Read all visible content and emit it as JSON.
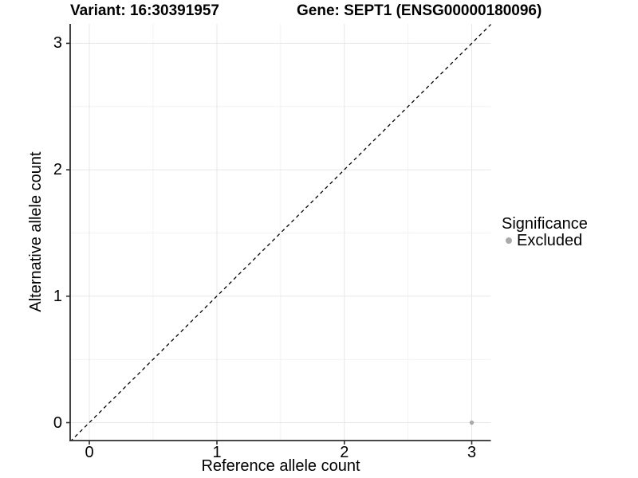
{
  "header": {
    "variant_title": "Variant: 16:30391957",
    "gene_title": "Gene: SEPT1 (ENSG00000180096)"
  },
  "axes": {
    "x": {
      "label": "Reference allele count",
      "tick_labels": [
        "0",
        "1",
        "2",
        "3"
      ]
    },
    "y": {
      "label": "Alternative allele count",
      "tick_labels": [
        "0",
        "1",
        "2",
        "3"
      ]
    }
  },
  "legend": {
    "title": "Significance",
    "items": [
      {
        "label": "Excluded",
        "color": "#aaaaaa",
        "marker": "circle-icon"
      }
    ]
  },
  "chart_data": {
    "type": "scatter",
    "title": "Variant: 16:30391957 | Gene: SEPT1 (ENSG00000180096)",
    "xlabel": "Reference allele count",
    "ylabel": "Alternative allele count",
    "xlim": [
      -0.15,
      3.15
    ],
    "ylim": [
      -0.15,
      3.15
    ],
    "x_ticks": [
      0,
      1,
      2,
      3
    ],
    "y_ticks": [
      0,
      1,
      2,
      3
    ],
    "grid": "major and minor gridlines every 0.5 units, light gray, white background",
    "legend_position": "right",
    "series": [
      {
        "name": "Excluded",
        "color": "#aaaaaa",
        "points": [
          {
            "x": 3,
            "y": 0
          }
        ]
      }
    ],
    "reference_line": {
      "type": "abline",
      "slope": 1,
      "intercept": 0,
      "style": "dashed",
      "color": "#000000"
    }
  },
  "colors": {
    "text": "#000000",
    "axis_line": "#2e2e2e",
    "grid_major": "#e7e7e7",
    "grid_minor": "#f2f2f2",
    "background": "#ffffff"
  }
}
